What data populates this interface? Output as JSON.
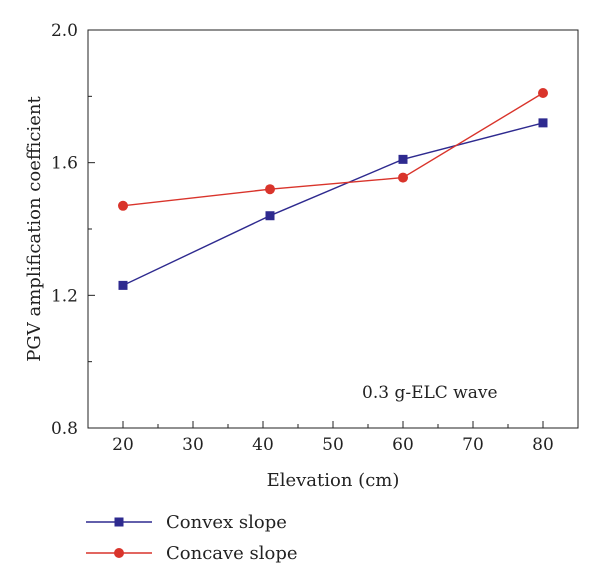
{
  "chart_data": {
    "type": "line",
    "title": "",
    "xlabel": "Elevation (cm)",
    "ylabel": "PGV amplification coefficient",
    "xlim": [
      15,
      85
    ],
    "ylim": [
      0.8,
      2.0
    ],
    "x_ticks": [
      "20",
      "30",
      "40",
      "50",
      "60",
      "70",
      "80"
    ],
    "y_ticks": [
      "0.8",
      "1.2",
      "1.6",
      "2.0"
    ],
    "grid": false,
    "legend_position": "bottom-left, below plot",
    "annotation": "0.3 g-ELC wave",
    "series": [
      {
        "name": "Convex slope",
        "color": "#2e2a8f",
        "marker": "square",
        "x": [
          20,
          41,
          60,
          80
        ],
        "y": [
          1.23,
          1.44,
          1.61,
          1.72
        ]
      },
      {
        "name": "Concave slope",
        "color": "#d9342b",
        "marker": "circle",
        "x": [
          20,
          41,
          60,
          80
        ],
        "y": [
          1.47,
          1.52,
          1.555,
          1.81
        ]
      }
    ]
  }
}
